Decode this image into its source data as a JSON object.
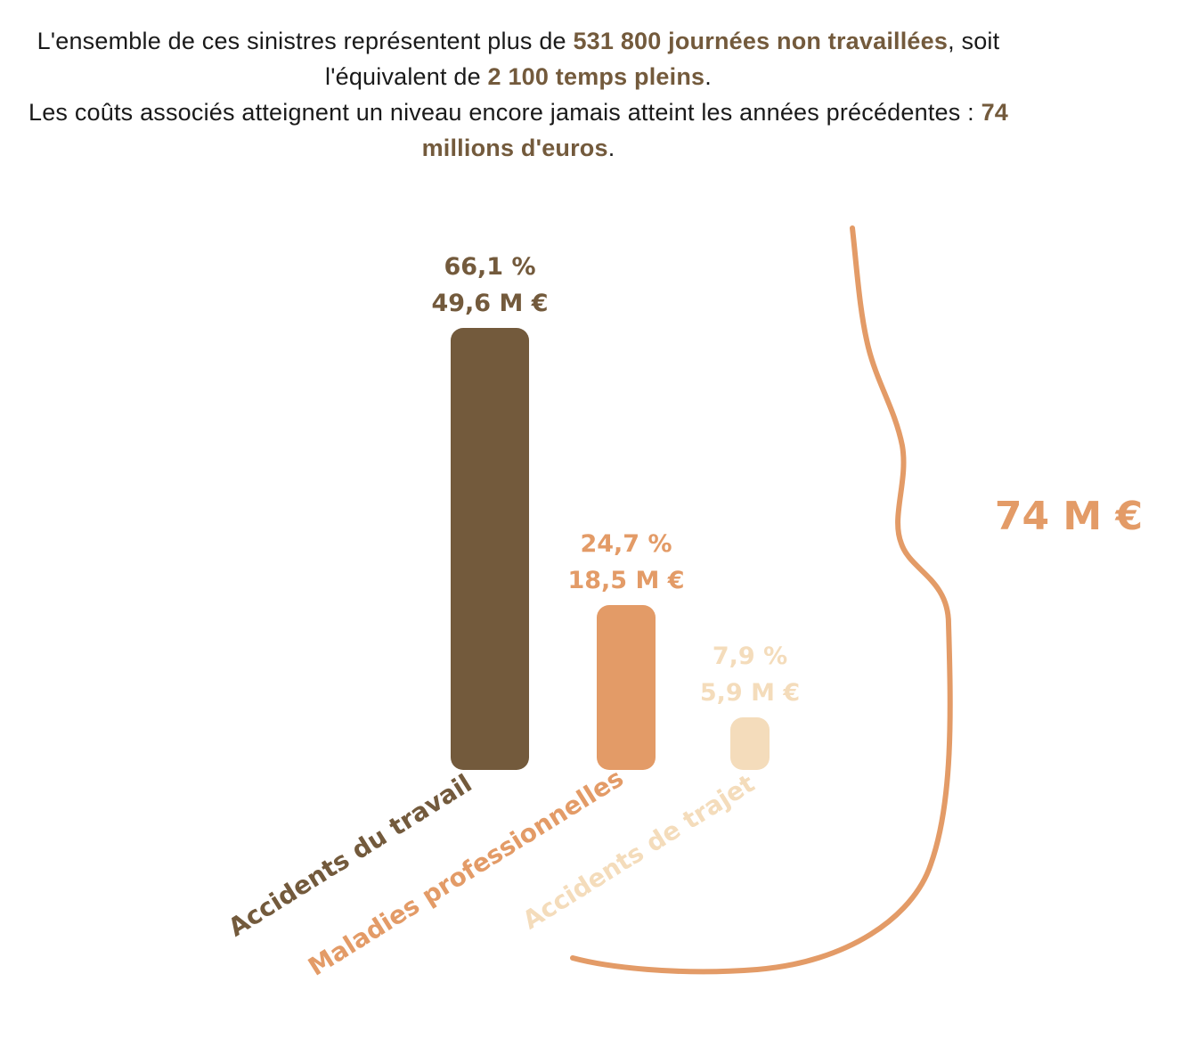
{
  "intro": {
    "line1_a": "L'ensemble de ces sinistres représentent plus de ",
    "line1_b": "531 800 journées non travaillées",
    "line1_c": ", soit l'équivalent de ",
    "line1_d": "2 100 temps pleins",
    "line1_e": ".",
    "line2_a": "Les coûts associés atteignent un niveau encore jamais atteint les années précédentes : ",
    "line2_b": "74 millions d'euros",
    "line2_c": "."
  },
  "colors": {
    "dark_brown": "#735a3c",
    "orange": "#e39b67",
    "beige": "#f4dcbb",
    "text": "#1a1a1a"
  },
  "chart_data": {
    "type": "bar",
    "categories": [
      "Accidents du travail",
      "Maladies professionnelles",
      "Accidents de trajet"
    ],
    "values": [
      49.6,
      18.5,
      5.9
    ],
    "percent_labels": [
      "66,1 %",
      "24,7 %",
      "7,9 %"
    ],
    "value_labels": [
      "49,6 M €",
      "18,5 M €",
      "5,9 M €"
    ],
    "bar_colors": [
      "#735a3c",
      "#e39b67",
      "#f4dcbb"
    ],
    "total_label": "74 M €",
    "ylim": [
      0,
      49.6
    ],
    "grid": false,
    "legend": "none"
  }
}
